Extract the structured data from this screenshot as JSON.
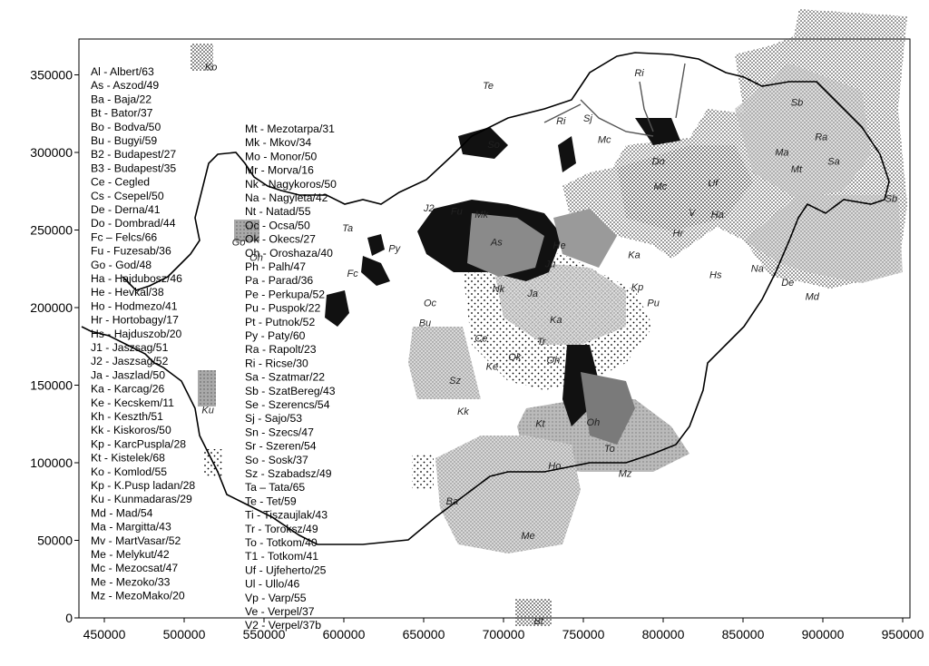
{
  "axes": {
    "x_ticks": [
      "450000",
      "500000",
      "550000",
      "600000",
      "650000",
      "700000",
      "750000",
      "800000",
      "850000",
      "900000",
      "950000"
    ],
    "y_ticks": [
      "0",
      "50000",
      "100000",
      "150000",
      "200000",
      "250000",
      "300000",
      "350000"
    ]
  },
  "legend_left": [
    "Al - Albert/63",
    "As - Aszod/49",
    "Ba - Baja/22",
    "Bt - Bator/37",
    "Bo - Bodva/50",
    "Bu - Bugyi/59",
    "B2 - Budapest/27",
    "B3 - Budapest/35",
    "Ce - Cegled",
    "Cs - Csepel/50",
    "De - Derna/41",
    "Do - Dombrad/44",
    "Fc – Felcs/66",
    "Fu - Fuzesab/36",
    "Go - God/48",
    "Ha - Hajdubosz/46",
    "He - Hevkal/38",
    "Ho - Hodmezo/41",
    "Hr - Hortobagy/17",
    "Hs - Hajduszob/20",
    "J1 - Jaszsag/51",
    "J2 - Jaszsag/52",
    "Ja - Jaszlad/50",
    "Ka - Karcag/26",
    "Ke - Kecskem/11",
    "Kh - Keszth/51",
    "Kk - Kiskoros/50",
    "Kp - KarcPuspla/28",
    "Kt - Kistelek/68",
    "Ko - Komlod/55",
    "Kp - K.Pusp ladan/28",
    "Ku - Kunmadaras/29",
    "Md - Mad/54",
    "Ma - Margitta/43",
    "Mv - MartVasar/52",
    "Me - Melykut/42",
    "Mc - Mezocsat/47",
    "Me - Mezoko/33",
    "Mz - MezoMako/20"
  ],
  "legend_right": [
    "Mt - Mezotarpa/31",
    "Mk - Mkov/34",
    "Mo - Monor/50",
    "Mr - Morva/16",
    "Nk - Nagykoros/50",
    "Na - Nagyleta/42",
    "Nt - Natad/55",
    "Oc - Ocsa/50",
    "Ok - Okecs/27",
    "Oh - Oroshaza/40",
    "Ph - Palh/47",
    "Pa - Parad/36",
    "Pe - Perkupa/52",
    "Pu - Puspok/22",
    "Pt - Putnok/52",
    "Py - Paty/60",
    "Ra - Rapolt/23",
    "Ri - Ricse/30",
    "Sa - Szatmar/22",
    "Sb - SzatBereg/43",
    "Se - Szerencs/54",
    "Sj - Sajo/53",
    "Sn - Szecs/47",
    "Sr - Szeren/54",
    "So - Sosk/37",
    "Sz - Szabadsz/49",
    "Ta – Tata/65",
    "Te - Tet/59",
    "Ti - Tiszaujlak/43",
    "Tr - Toroksz/49",
    "To - Totkom/40",
    "T1 - Totkom/41",
    "Uf - Ujfeherto/25",
    "Ul - Ullo/46",
    "Vp - Varp/55",
    "Ve - Verpel/37",
    "V2 - Verpel/37b"
  ],
  "map_labels": [
    {
      "text": "Ko",
      "x": 513,
      "y": 353
    },
    {
      "text": "Te",
      "x": 687,
      "y": 341
    },
    {
      "text": "Ri",
      "x": 782,
      "y": 349
    },
    {
      "text": "Sb",
      "x": 880,
      "y": 330
    },
    {
      "text": "Sj",
      "x": 750,
      "y": 320
    },
    {
      "text": "Ri",
      "x": 733,
      "y": 318
    },
    {
      "text": "Mc",
      "x": 759,
      "y": 306
    },
    {
      "text": "So",
      "x": 690,
      "y": 303
    },
    {
      "text": "Ra",
      "x": 895,
      "y": 308
    },
    {
      "text": "Ma",
      "x": 870,
      "y": 298
    },
    {
      "text": "Sa",
      "x": 903,
      "y": 292
    },
    {
      "text": "Do",
      "x": 793,
      "y": 292
    },
    {
      "text": "Mt",
      "x": 880,
      "y": 287
    },
    {
      "text": "Uf",
      "x": 828,
      "y": 278
    },
    {
      "text": "Sb",
      "x": 939,
      "y": 268
    },
    {
      "text": "Mc",
      "x": 794,
      "y": 276
    },
    {
      "text": "Ha",
      "x": 830,
      "y": 258
    },
    {
      "text": "V",
      "x": 816,
      "y": 259
    },
    {
      "text": "J2",
      "x": 650,
      "y": 262
    },
    {
      "text": "Fu",
      "x": 667,
      "y": 260
    },
    {
      "text": "Mk",
      "x": 682,
      "y": 258
    },
    {
      "text": "Ta",
      "x": 599,
      "y": 249
    },
    {
      "text": "As",
      "x": 692,
      "y": 240
    },
    {
      "text": "He",
      "x": 731,
      "y": 238
    },
    {
      "text": "Hr",
      "x": 806,
      "y": 246
    },
    {
      "text": "Ka",
      "x": 778,
      "y": 232
    },
    {
      "text": "Py",
      "x": 628,
      "y": 236
    },
    {
      "text": "Go",
      "x": 530,
      "y": 240
    },
    {
      "text": "Oh",
      "x": 541,
      "y": 230
    },
    {
      "text": "Ju",
      "x": 726,
      "y": 226
    },
    {
      "text": "Hs",
      "x": 829,
      "y": 219
    },
    {
      "text": "Na",
      "x": 855,
      "y": 223
    },
    {
      "text": "Fc",
      "x": 602,
      "y": 220
    },
    {
      "text": "Nk",
      "x": 693,
      "y": 210
    },
    {
      "text": "Ja",
      "x": 715,
      "y": 207
    },
    {
      "text": "Kp",
      "x": 780,
      "y": 211
    },
    {
      "text": "De",
      "x": 874,
      "y": 214
    },
    {
      "text": "Oc",
      "x": 650,
      "y": 201
    },
    {
      "text": "Pu",
      "x": 790,
      "y": 201
    },
    {
      "text": "Md",
      "x": 889,
      "y": 205
    },
    {
      "text": "Bu",
      "x": 647,
      "y": 188
    },
    {
      "text": "Ka",
      "x": 729,
      "y": 190
    },
    {
      "text": "Ce",
      "x": 682,
      "y": 178
    },
    {
      "text": "Tr",
      "x": 721,
      "y": 176
    },
    {
      "text": "Ok",
      "x": 703,
      "y": 166
    },
    {
      "text": "Oh",
      "x": 727,
      "y": 164
    },
    {
      "text": "Ke",
      "x": 689,
      "y": 160
    },
    {
      "text": "Sz",
      "x": 666,
      "y": 151
    },
    {
      "text": "Kk",
      "x": 671,
      "y": 131
    },
    {
      "text": "Ku",
      "x": 511,
      "y": 132
    },
    {
      "text": "Kt",
      "x": 720,
      "y": 123
    },
    {
      "text": "Oh",
      "x": 752,
      "y": 124
    },
    {
      "text": "To",
      "x": 763,
      "y": 107
    },
    {
      "text": "Ho",
      "x": 728,
      "y": 96
    },
    {
      "text": "Mz",
      "x": 772,
      "y": 91
    },
    {
      "text": "Ba",
      "x": 664,
      "y": 73
    },
    {
      "text": "Me",
      "x": 711,
      "y": 51
    },
    {
      "text": "Bt",
      "x": 719,
      "y": -4
    }
  ]
}
